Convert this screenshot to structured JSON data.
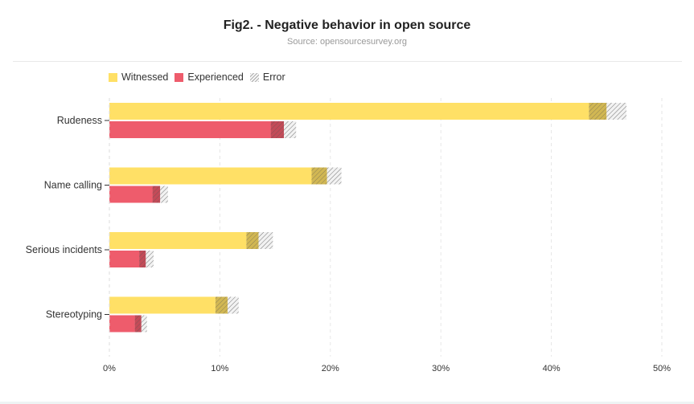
{
  "title": "Fig2. - Negative behavior in open source",
  "subtitle": "Source: opensourcesurvey.org",
  "legend": {
    "witnessed": "Witnessed",
    "experienced": "Experienced",
    "error": "Error"
  },
  "colors": {
    "witnessed": "#ffe066",
    "experienced": "#ee5c6c",
    "error_hatch": "#666666",
    "grid": "#e6e6e6"
  },
  "chart_data": {
    "type": "bar",
    "orientation": "horizontal",
    "title": "Fig2. - Negative behavior in open source",
    "subtitle": "Source: opensourcesurvey.org",
    "categories": [
      "Rudeness",
      "Name calling",
      "Serious incidents",
      "Stereotyping"
    ],
    "series": [
      {
        "name": "Witnessed",
        "values": [
          43.4,
          18.3,
          12.4,
          9.6
        ],
        "error_low": [
          43.4,
          18.3,
          12.4,
          9.6
        ],
        "error_high": [
          46.8,
          21.0,
          14.8,
          11.7
        ]
      },
      {
        "name": "Experienced",
        "values": [
          14.6,
          3.9,
          2.7,
          2.3
        ],
        "error_low": [
          14.6,
          3.9,
          2.7,
          2.3
        ],
        "error_high": [
          16.9,
          5.3,
          4.0,
          3.4
        ]
      }
    ],
    "error_overlap": {
      "Witnessed": [
        1.6,
        1.4,
        1.1,
        1.1
      ],
      "Experienced": [
        1.2,
        0.7,
        0.6,
        0.6
      ]
    },
    "x_ticks": [
      "0%",
      "10%",
      "20%",
      "30%",
      "40%",
      "50%"
    ],
    "xlim": [
      0,
      50
    ],
    "grid": "vertical dashed",
    "legend_position": "top-left"
  }
}
